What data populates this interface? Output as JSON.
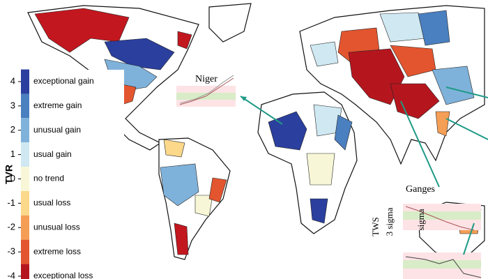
{
  "legend": {
    "title": "TVR",
    "ticks": [
      4,
      3,
      2,
      1,
      0,
      -1,
      -2,
      -3,
      -4
    ],
    "labels": [
      "exceptional gain",
      "extreme gain",
      "unusual gain",
      "usual gain",
      "no trend",
      "usual loss",
      "unusual loss",
      "extreme loss",
      "exceptional loss"
    ],
    "colors": [
      "#2b3f9e",
      "#4a7fc0",
      "#7fb2da",
      "#cfe8f2",
      "#f7f7d8",
      "#fbd88a",
      "#f59e55",
      "#e3552f",
      "#b5161e"
    ]
  },
  "annotations": {
    "niger": "Niger",
    "ganges": "Ganges",
    "tws": "TWS",
    "three_sigma": "3 sigma",
    "sigma": "sigma"
  }
}
